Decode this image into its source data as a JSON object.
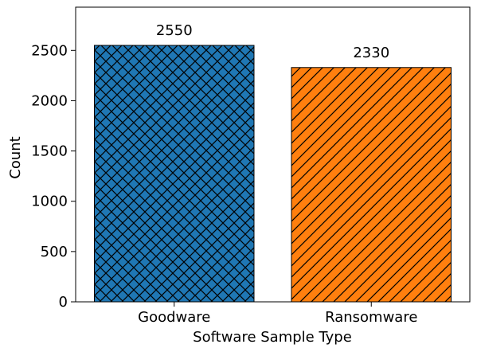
{
  "chart_data": {
    "type": "bar",
    "title": "",
    "xlabel": "Software Sample Type",
    "ylabel": "Count",
    "categories": [
      "Goodware",
      "Ransomware"
    ],
    "values": [
      2550,
      2330
    ],
    "value_labels": [
      "2550",
      "2330"
    ],
    "colors": [
      "#1f77b4",
      "#ff7f0e"
    ],
    "hatches": [
      "crosshatch",
      "diagonal"
    ],
    "ylim": [
      0,
      2930
    ],
    "yticks": [
      0,
      500,
      1000,
      1500,
      2000,
      2500
    ],
    "ytick_labels": [
      "0",
      "500",
      "1000",
      "1500",
      "2000",
      "2500"
    ],
    "grid": false,
    "legend": "none"
  }
}
